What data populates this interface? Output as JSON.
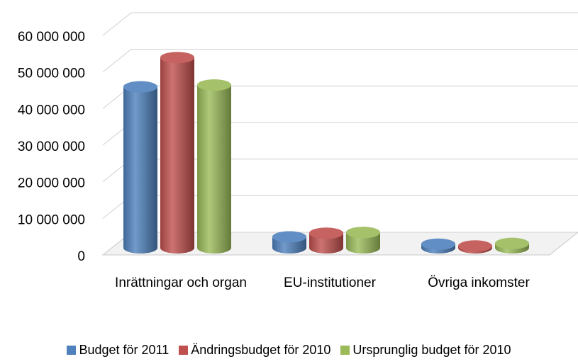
{
  "chart_data": {
    "type": "bar",
    "categories": [
      "Inrättningar och organ",
      "EU-institutioner",
      "Övriga inkomster"
    ],
    "series": [
      {
        "name": "Budget för 2011",
        "color": "#4f81bd",
        "values": [
          44000000,
          3000000,
          1000000
        ]
      },
      {
        "name": "Ändringsbudget för 2010",
        "color": "#c0504d",
        "values": [
          52000000,
          4000000,
          500000
        ]
      },
      {
        "name": "Ursprunglig budget för 2010",
        "color": "#9bbb59",
        "values": [
          44500000,
          4200000,
          1200000
        ]
      }
    ],
    "ylim": [
      0,
      60000000
    ],
    "yticks": [
      0,
      {
        "value": 10000000,
        "label": "10 000 000"
      },
      {
        "value": 20000000,
        "label": "20 000 000"
      },
      {
        "value": 30000000,
        "label": "30 000 000"
      },
      {
        "value": 40000000,
        "label": "40 000 000"
      },
      {
        "value": 50000000,
        "label": "50 000 000"
      },
      {
        "value": 60000000,
        "label": "60 000 000"
      }
    ],
    "grid": true,
    "legend": "bottom"
  }
}
